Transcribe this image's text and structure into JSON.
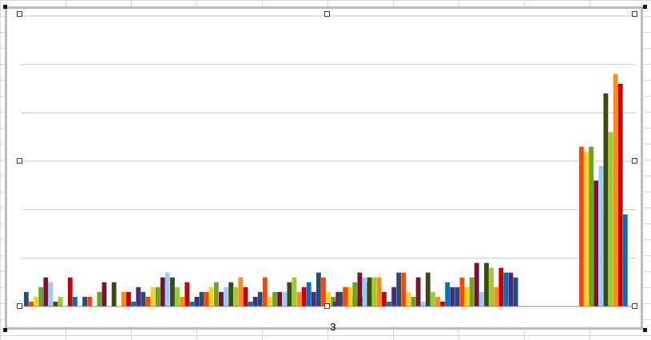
{
  "chart_data": {
    "type": "bar",
    "categories": [
      "3"
    ],
    "ylim": [
      0,
      60
    ],
    "grid": true,
    "legend": "none",
    "colors": [
      "#1F4E79",
      "#FF4500",
      "#FFD21F",
      "#6BA32B",
      "#7B1232",
      "#99CCFF",
      "#3A4A12",
      "#9ACD32",
      "#FF8C1A",
      "#CC0000",
      "#0070C0",
      "#4B2B7A"
    ],
    "groups": [
      [
        3,
        1,
        2,
        4,
        6,
        5,
        1,
        2,
        0,
        6,
        2,
        0,
        2,
        2,
        0,
        3,
        5,
        0,
        5,
        0,
        3,
        3,
        1,
        4,
        3,
        2,
        4,
        4,
        6,
        7,
        6,
        4,
        2,
        5,
        1,
        2,
        3,
        3,
        4,
        5,
        3,
        4,
        5,
        4,
        6,
        4,
        1,
        2,
        3,
        6,
        2,
        3,
        3,
        3,
        5,
        6,
        3,
        4,
        5,
        3,
        7,
        6,
        3,
        2,
        3,
        2,
        4,
        2,
        2,
        2,
        5
      ],
      [
        1,
        3,
        4,
        4,
        5,
        7,
        6,
        6,
        6,
        6,
        3,
        1,
        4,
        7,
        7,
        3,
        2,
        6,
        1,
        7,
        3,
        2,
        1,
        5,
        4,
        4,
        6,
        4,
        6,
        9,
        3,
        9,
        8,
        4,
        8,
        7,
        7,
        6
      ]
    ],
    "far_group": [
      33,
      32,
      33,
      26,
      29,
      44,
      36,
      48,
      46,
      19
    ]
  },
  "x_label": "3"
}
